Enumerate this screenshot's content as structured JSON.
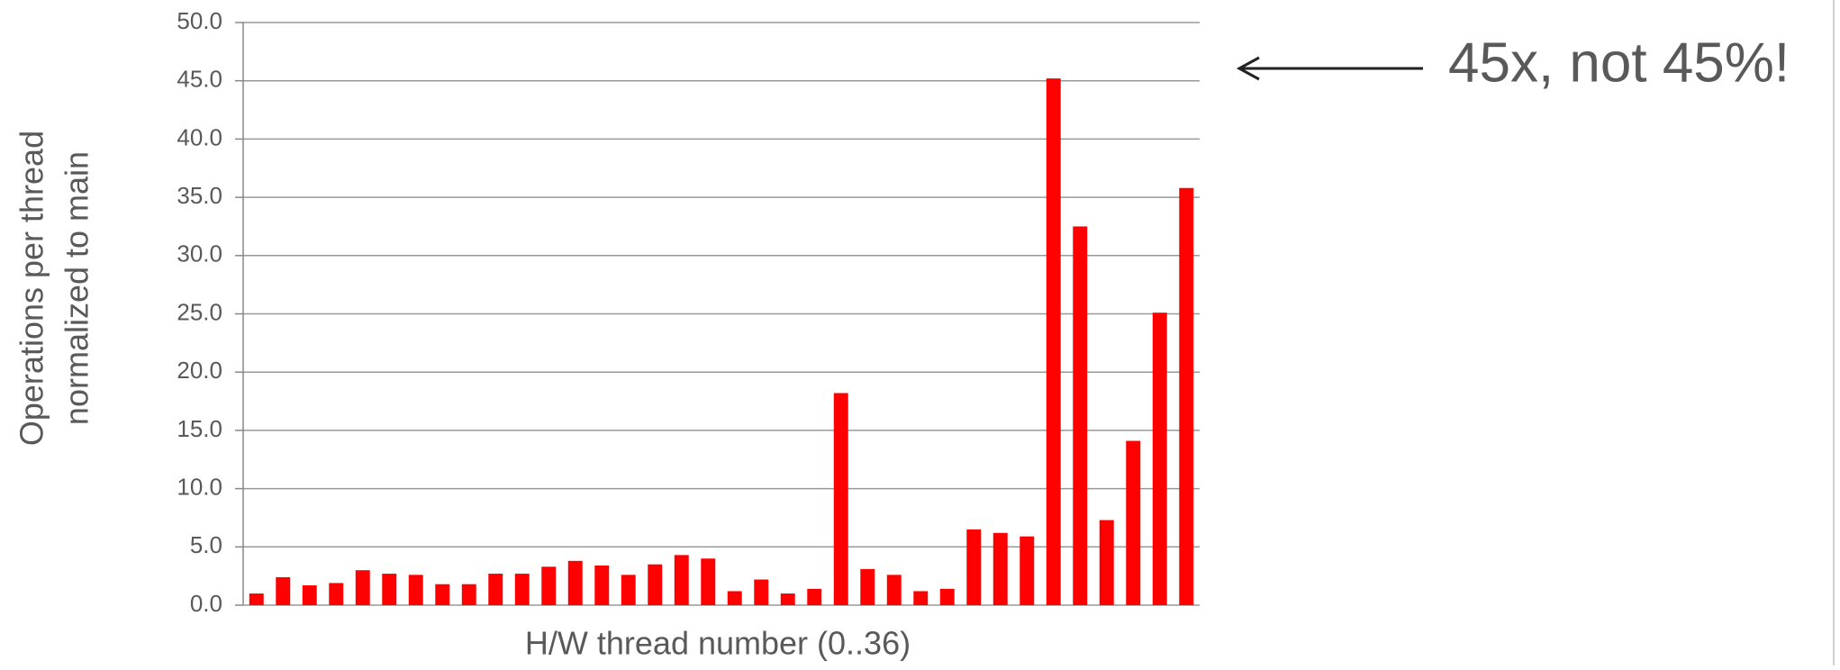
{
  "chart_data": {
    "type": "bar",
    "ylabel": [
      "Operations per thread",
      "normalized to main"
    ],
    "xlabel": "H/W thread number (0..36)",
    "annotation": "45x, not 45%!",
    "values": [
      1.0,
      2.4,
      1.7,
      1.9,
      3.0,
      2.7,
      2.6,
      1.8,
      1.8,
      2.7,
      2.7,
      3.3,
      3.8,
      3.4,
      2.6,
      3.5,
      4.3,
      4.0,
      1.2,
      2.2,
      1.0,
      1.4,
      18.2,
      3.1,
      2.6,
      1.2,
      1.4,
      6.5,
      6.2,
      5.9,
      45.2,
      32.5,
      7.3,
      14.1,
      25.1,
      35.8
    ],
    "color": "#ff0000",
    "ylim": [
      0,
      50
    ],
    "yticks": [
      {
        "value": 0,
        "label": "0.0"
      },
      {
        "value": 5,
        "label": "5.0"
      },
      {
        "value": 10,
        "label": "10.0"
      },
      {
        "value": 15,
        "label": "15.0"
      },
      {
        "value": 20,
        "label": "20.0"
      },
      {
        "value": 25,
        "label": "25.0"
      },
      {
        "value": 30,
        "label": "30.0"
      },
      {
        "value": 35,
        "label": "35.0"
      },
      {
        "value": 40,
        "label": "40.0"
      },
      {
        "value": 45,
        "label": "45.0"
      },
      {
        "value": 50,
        "label": "50.0"
      }
    ],
    "grid": true
  }
}
